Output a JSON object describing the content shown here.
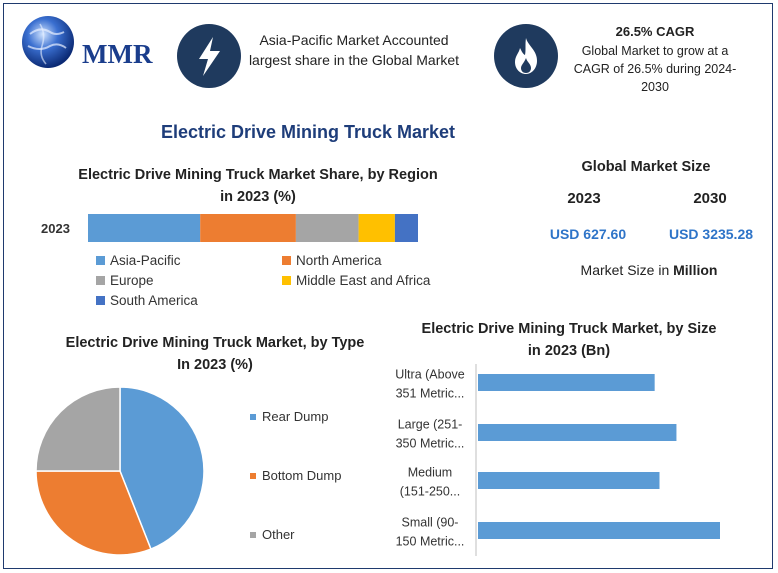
{
  "brand": {
    "logo_text": "MMR"
  },
  "header": {
    "left_text": "Asia-Pacific Market Accounted largest share in the Global Market",
    "right_title": "26.5% CAGR",
    "right_text": "Global Market to grow at a CAGR of 26.5% during 2024-2030",
    "left_icon": "lightning-bolt-icon",
    "right_icon": "flame-icon"
  },
  "title": "Electric Drive Mining Truck Market",
  "global_market": {
    "title": "Global Market Size",
    "year_1": "2023",
    "year_2": "2030",
    "value_1": "USD 627.60",
    "value_2": "USD 3235.28",
    "unit_prefix": "Market Size in ",
    "unit_bold": "Million"
  },
  "chart_data": [
    {
      "type": "bar",
      "orientation": "horizontal-stacked",
      "title": "Electric Drive Mining Truck Market Share, by Region in 2023 (%)",
      "categories": [
        "2023"
      ],
      "series": [
        {
          "name": "Asia-Pacific",
          "values": [
            34
          ],
          "color": "#5b9bd5"
        },
        {
          "name": "North America",
          "values": [
            29
          ],
          "color": "#ed7d31"
        },
        {
          "name": "Europe",
          "values": [
            19
          ],
          "color": "#a5a5a5"
        },
        {
          "name": "Middle East and Africa",
          "values": [
            11
          ],
          "color": "#ffc000"
        },
        {
          "name": "South America",
          "values": [
            7
          ],
          "color": "#4472c4"
        }
      ],
      "legend": "bottom"
    },
    {
      "type": "pie",
      "title": "Electric Drive Mining Truck Market, by Type In 2023 (%)",
      "labels": [
        "Rear Dump",
        "Bottom Dump",
        "Other"
      ],
      "values": [
        44,
        31,
        25
      ],
      "colors": [
        "#5b9bd5",
        "#ed7d31",
        "#a5a5a5"
      ],
      "legend": "right"
    },
    {
      "type": "bar",
      "orientation": "horizontal",
      "title": "Electric Drive Mining Truck Market, by Size in 2023 (Bn)",
      "categories": [
        [
          "Ultra (Above",
          "351 Metric..."
        ],
        [
          "Large (251-",
          "350 Metric..."
        ],
        [
          "Medium",
          "(151-250..."
        ],
        [
          "Small (90-",
          "150 Metric..."
        ]
      ],
      "values": [
        0.73,
        0.82,
        0.75,
        1.0
      ],
      "xlim": [
        0,
        1
      ],
      "color": "#5b9bd5"
    }
  ]
}
